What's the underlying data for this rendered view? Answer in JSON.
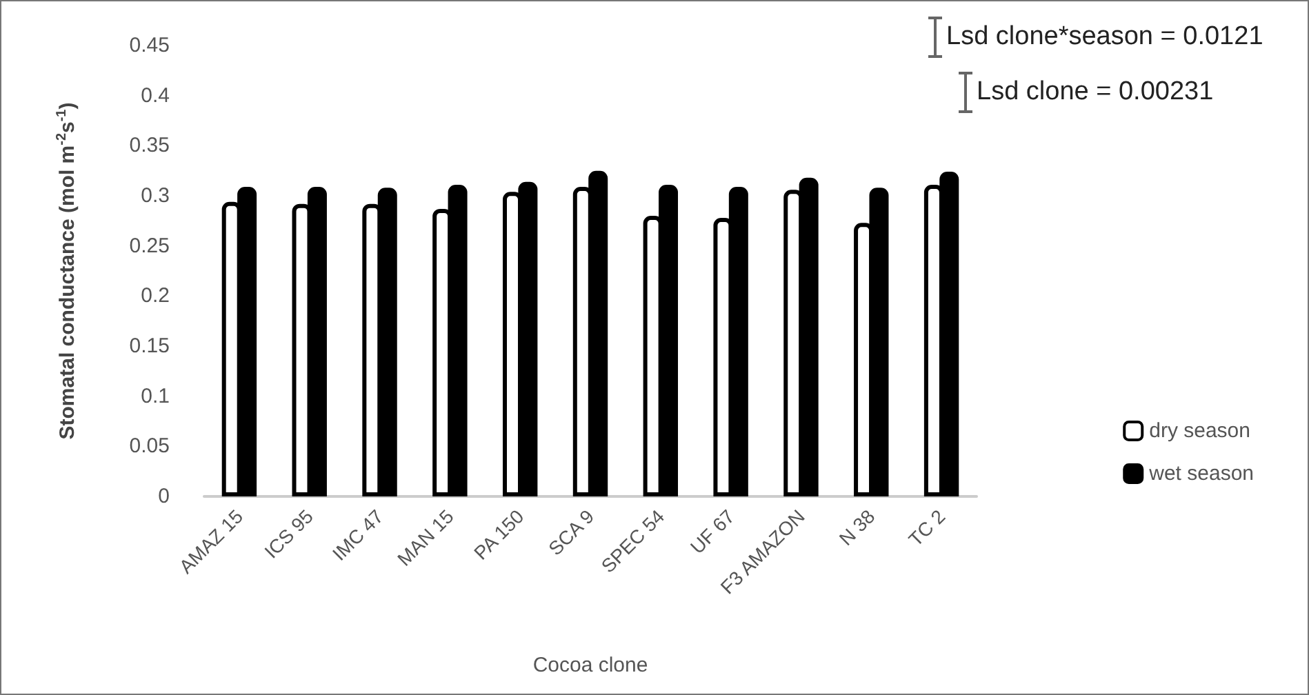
{
  "chart_data": {
    "type": "bar",
    "xlabel": "Cocoa clone",
    "ylabel": "Stomatal conductance (mol m$^{-2}$s$^{-1}$)",
    "categories": [
      "AMAZ 15",
      "ICS 95",
      "IMC 47",
      "MAN 15",
      "PA 150",
      "SCA 9",
      "SPEC 54",
      "UF 67",
      "F3 AMAZON",
      "N 38",
      "TC 2"
    ],
    "series": [
      {
        "name": "dry season",
        "color": "#ffffff",
        "values": [
          0.294,
          0.292,
          0.292,
          0.287,
          0.304,
          0.309,
          0.28,
          0.278,
          0.306,
          0.273,
          0.311
        ]
      },
      {
        "name": "wet season",
        "color": "#000000",
        "values": [
          0.309,
          0.309,
          0.308,
          0.311,
          0.314,
          0.325,
          0.311,
          0.309,
          0.318,
          0.308,
          0.324
        ]
      }
    ],
    "ylim": [
      0,
      0.45
    ],
    "yticks": [
      0,
      0.05,
      0.1,
      0.15,
      0.2,
      0.25,
      0.3,
      0.35,
      0.4,
      0.45
    ],
    "annotations": [
      "Lsd clone*season = 0.0121",
      "Lsd clone = 0.00231"
    ],
    "grid": false,
    "legend": "right"
  }
}
